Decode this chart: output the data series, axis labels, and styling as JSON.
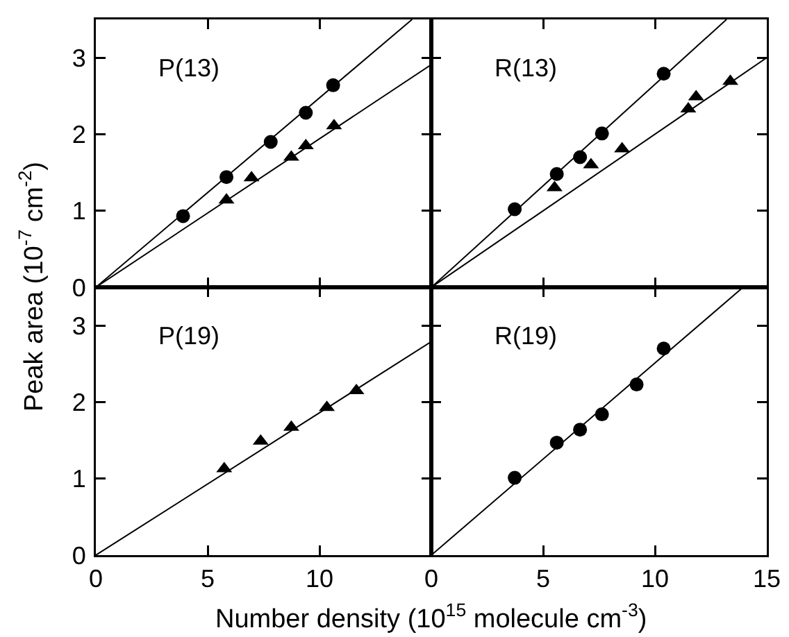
{
  "chart_data": [
    {
      "type": "scatter",
      "title": "P(13)",
      "xlim": [
        0,
        15
      ],
      "xticks": [
        0,
        5,
        10,
        {
          "value": 15,
          "label": null
        }
      ],
      "ylim": [
        0,
        3.5
      ],
      "yticks": [
        0,
        1,
        2,
        3
      ],
      "tick_labels": "y",
      "series": [
        {
          "color": "#000000",
          "marker": "circle",
          "x": [
            3.9,
            5.84,
            7.82,
            9.39,
            10.61
          ],
          "values": [
            0.93,
            1.44,
            1.9,
            2.28,
            2.64
          ]
        },
        {
          "color": "#000000",
          "marker": "triangle",
          "x": [
            5.84,
            6.96,
            8.74,
            9.39,
            10.65
          ],
          "values": [
            1.14,
            1.43,
            1.7,
            1.85,
            2.11
          ]
        },
        {
          "type": "line",
          "color": "#000000",
          "marker": "none",
          "x": [
            0,
            14.14
          ],
          "values": [
            0,
            3.5
          ]
        },
        {
          "type": "line",
          "color": "#000000",
          "marker": "none",
          "x": [
            0,
            15
          ],
          "values": [
            0,
            2.91
          ]
        }
      ]
    },
    {
      "type": "scatter",
      "title": "R(13)",
      "xlim": [
        0,
        15
      ],
      "xticks": [
        0,
        5,
        10,
        15
      ],
      "ylim": [
        0,
        3.5
      ],
      "yticks": [
        0,
        1,
        2,
        3
      ],
      "tick_labels": false,
      "series": [
        {
          "color": "#000000",
          "marker": "circle",
          "x": [
            3.73,
            5.61,
            6.65,
            7.63,
            10.39
          ],
          "values": [
            1.02,
            1.48,
            1.7,
            2.01,
            2.79
          ]
        },
        {
          "color": "#000000",
          "marker": "triangle",
          "x": [
            5.51,
            7.14,
            8.53,
            11.49,
            11.84,
            13.37
          ],
          "values": [
            1.3,
            1.6,
            1.81,
            2.33,
            2.49,
            2.69
          ]
        },
        {
          "type": "line",
          "color": "#000000",
          "marker": "none",
          "x": [
            0,
            13.2
          ],
          "values": [
            0,
            3.5
          ]
        },
        {
          "type": "line",
          "color": "#000000",
          "marker": "none",
          "x": [
            0,
            15
          ],
          "values": [
            0,
            3.0
          ]
        }
      ]
    },
    {
      "type": "scatter",
      "title": "P(19)",
      "xlabel": "Number density (10$^{15}$ molecule cm$^{-3}$)",
      "ylabel": "Peak area (10$^{-7}$ cm$^{-2}$)",
      "xlim": [
        0,
        15
      ],
      "xticks": [
        0,
        5,
        10,
        {
          "value": 15,
          "label": null
        }
      ],
      "ylim": [
        0,
        3.5
      ],
      "yticks": [
        0,
        1,
        2,
        3
      ],
      "series": [
        {
          "color": "#000000",
          "marker": "triangle",
          "x": [
            5.74,
            7.37,
            8.74,
            10.33,
            11.65
          ],
          "values": [
            1.13,
            1.49,
            1.67,
            1.93,
            2.15
          ]
        },
        {
          "type": "line",
          "color": "#000000",
          "marker": "none",
          "x": [
            0,
            15
          ],
          "values": [
            0,
            2.79
          ]
        }
      ]
    },
    {
      "type": "scatter",
      "title": "R(19)",
      "xlim": [
        0,
        15
      ],
      "xticks": [
        0,
        5,
        10,
        15
      ],
      "ylim": [
        0,
        3.5
      ],
      "yticks": [
        0,
        1,
        2,
        3
      ],
      "tick_labels": "x",
      "series": [
        {
          "color": "#000000",
          "marker": "circle",
          "x": [
            3.73,
            5.61,
            6.65,
            7.63,
            9.18,
            10.39
          ],
          "values": [
            1.01,
            1.47,
            1.64,
            1.84,
            2.23,
            2.7
          ]
        },
        {
          "type": "line",
          "color": "#000000",
          "marker": "none",
          "x": [
            0,
            13.94
          ],
          "values": [
            0,
            3.5
          ]
        }
      ]
    }
  ]
}
